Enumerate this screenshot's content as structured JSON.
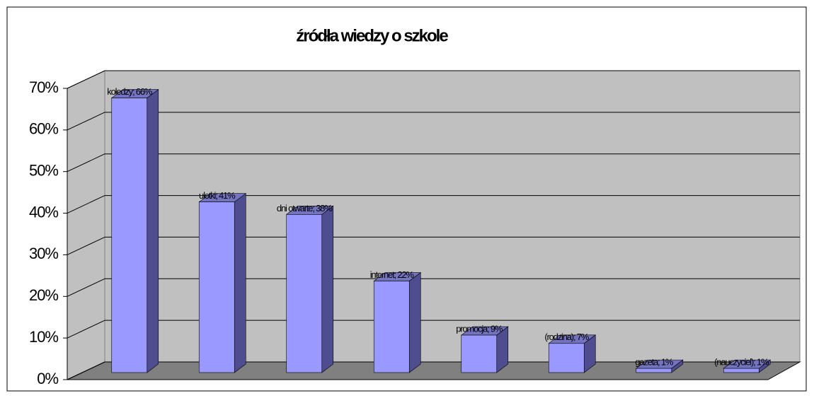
{
  "chart_data": {
    "type": "bar3d",
    "title": "źródła wiedzy o szkole",
    "categories": [
      "koledzy",
      "ulotki",
      "dni otwarte",
      "internet",
      "promocja",
      "(rodzina)",
      "gazeta",
      "(nauczyciel)"
    ],
    "values": [
      66,
      41,
      38,
      22,
      9,
      7,
      1,
      1
    ],
    "value_labels": [
      "koledzy; 66%",
      "ulotki; 41%",
      "dni otwarte; 38%",
      "internet; 22%",
      "promocja; 9%",
      "(rodzina); 7%",
      "gazeta; 1%",
      "(nauczyciel); 1%"
    ],
    "color": "#9999ff",
    "ylim": [
      0,
      70
    ],
    "yticks": [
      {
        "value": 0,
        "label": "0%"
      },
      {
        "value": 10,
        "label": "10%"
      },
      {
        "value": 20,
        "label": "20%"
      },
      {
        "value": 30,
        "label": "30%"
      },
      {
        "value": 40,
        "label": "40%"
      },
      {
        "value": 50,
        "label": "50%"
      },
      {
        "value": 60,
        "label": "60%"
      },
      {
        "value": 70,
        "label": "70%"
      }
    ],
    "grid": true
  }
}
